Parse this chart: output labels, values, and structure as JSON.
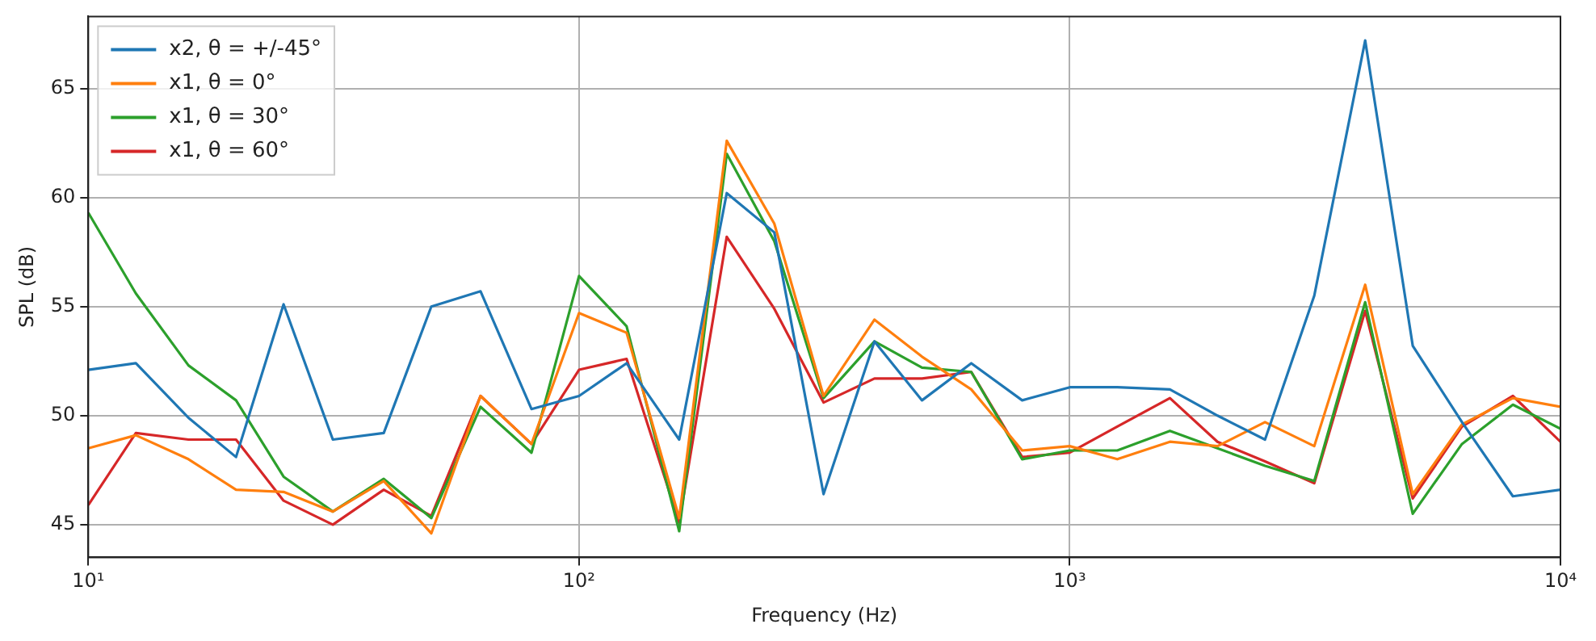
{
  "chart_data": {
    "type": "line",
    "xlabel": "Frequency (Hz)",
    "ylabel": "SPL (dB)",
    "log": "x",
    "grid": true,
    "legend": "top left",
    "marker": "none",
    "line_style": "solid",
    "x": [
      10,
      12.5,
      16,
      20,
      25,
      31.5,
      40,
      50,
      63,
      80,
      100,
      125,
      160,
      200,
      250,
      315,
      400,
      500,
      630,
      800,
      1000,
      1250,
      1600,
      2000,
      2500,
      3150,
      4000,
      5000,
      6300,
      8000,
      10000
    ],
    "xlim": [
      10,
      10000
    ],
    "xticks": [
      {
        "value": 10,
        "label": "10¹"
      },
      {
        "value": 100,
        "label": "10²"
      },
      {
        "value": 1000,
        "label": "10³"
      },
      {
        "value": 10000,
        "label": "10⁴"
      }
    ],
    "ylim": [
      43.5,
      68.3
    ],
    "yticks": [
      45,
      50,
      55,
      60,
      65
    ],
    "series": [
      {
        "name": "x2, θ = +/-45°",
        "color": "#1f77b4",
        "values": [
          52.1,
          52.4,
          49.9,
          48.1,
          55.1,
          48.9,
          49.2,
          55.0,
          55.7,
          50.3,
          50.9,
          52.4,
          48.9,
          60.2,
          58.4,
          46.4,
          53.4,
          50.7,
          52.4,
          50.7,
          51.3,
          51.3,
          51.2,
          50.0,
          48.9,
          55.5,
          67.2,
          53.2,
          49.7,
          46.3,
          46.6
        ]
      },
      {
        "name": "x1, θ = 0°",
        "color": "#ff7f0e",
        "values": [
          48.5,
          49.1,
          48.0,
          46.6,
          46.5,
          45.6,
          47.0,
          44.6,
          50.9,
          48.7,
          54.7,
          53.8,
          45.3,
          62.6,
          58.8,
          50.9,
          54.4,
          52.7,
          51.2,
          48.4,
          48.6,
          48.0,
          48.8,
          48.6,
          49.7,
          48.6,
          56.0,
          46.4,
          49.6,
          50.8,
          50.4
        ]
      },
      {
        "name": "x1, θ = 30°",
        "color": "#2ca02c",
        "values": [
          59.3,
          55.6,
          52.3,
          50.7,
          47.2,
          45.6,
          47.1,
          45.3,
          50.4,
          48.3,
          56.4,
          54.1,
          44.7,
          62.0,
          58.0,
          50.8,
          53.4,
          52.2,
          52.0,
          48.0,
          48.4,
          48.4,
          49.3,
          48.5,
          47.7,
          47.0,
          55.2,
          45.5,
          48.7,
          50.5,
          49.4
        ]
      },
      {
        "name": "x1, θ = 60°",
        "color": "#d62728",
        "values": [
          45.9,
          49.2,
          48.9,
          48.9,
          46.1,
          45.0,
          46.6,
          45.4,
          50.9,
          48.7,
          52.1,
          52.6,
          45.1,
          58.2,
          54.9,
          50.6,
          51.7,
          51.7,
          52.0,
          48.1,
          48.3,
          49.5,
          50.8,
          48.8,
          47.9,
          46.9,
          54.8,
          46.2,
          49.5,
          50.9,
          48.8
        ]
      }
    ]
  }
}
